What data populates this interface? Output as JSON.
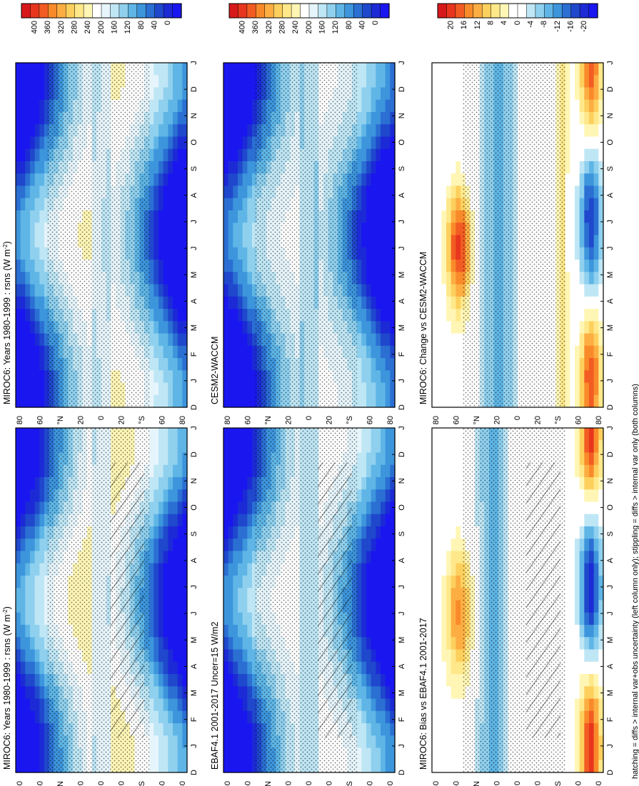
{
  "footnote": "hatching = diffs > internal var+obs uncertainty (left column only); stippling = diffs > internal var only (both columns)",
  "colors": {
    "abs_scale": [
      "#d7191c",
      "#e8361e",
      "#f25c22",
      "#f98a2a",
      "#fcae42",
      "#fdd05e",
      "#fee88a",
      "#fff6b5",
      "#ffffff",
      "#e6f5fb",
      "#bfe6f5",
      "#8fd0ee",
      "#5fb6e6",
      "#3d95dc",
      "#2b6fd3",
      "#1f48cc",
      "#1c2ad6",
      "#1a16f0"
    ],
    "diff_scale": [
      "#d7191c",
      "#e8361e",
      "#f25c22",
      "#f98a2a",
      "#fcae42",
      "#fdd05e",
      "#fee88a",
      "#fff6b5",
      "#ffffff",
      "#ffffff",
      "#bfe6f5",
      "#8fd0ee",
      "#5fb6e6",
      "#3d95dc",
      "#2b6fd3",
      "#1f48cc",
      "#1c2ad6",
      "#1a16f0"
    ]
  },
  "chart_data": [
    {
      "type": "heatmap",
      "title": "MIROC6: Years 1980-1999 : rsns (W m",
      "title_sup": "-2",
      "title_end": ")",
      "x": [
        "D",
        "J",
        "F",
        "M",
        "A",
        "M",
        "J",
        "J",
        "A",
        "S",
        "O",
        "N",
        "D",
        "J"
      ],
      "y": [
        "80",
        "60",
        "°N",
        "20",
        "0",
        "20",
        "°S",
        "60",
        "80"
      ],
      "colorbar": [
        "400",
        "360",
        "320",
        "280",
        "240",
        "200",
        "160",
        "120",
        "80",
        "40",
        "0"
      ],
      "scale": "abs",
      "hatching": true
    },
    {
      "type": "heatmap",
      "title": "MIROC6: Years 1980-1999 : rsns (W m",
      "title_sup": "-2",
      "title_end": ")",
      "x": [
        "D",
        "J",
        "F",
        "M",
        "A",
        "M",
        "J",
        "J",
        "A",
        "S",
        "O",
        "N",
        "D",
        "J"
      ],
      "y": [
        "80",
        "60",
        "°N",
        "20",
        "0",
        "20",
        "°S",
        "60",
        "80"
      ],
      "colorbar": [
        "400",
        "360",
        "320",
        "280",
        "240",
        "200",
        "160",
        "120",
        "80",
        "40",
        "0"
      ],
      "scale": "abs",
      "hatching": false
    },
    {
      "type": "heatmap",
      "title": "EBAF4.1 2001-2017 Uncer=15 W/m2",
      "title_sup": "",
      "title_end": "",
      "x": [
        "D",
        "J",
        "F",
        "M",
        "A",
        "M",
        "J",
        "J",
        "A",
        "S",
        "O",
        "N",
        "D",
        "J"
      ],
      "y": [
        "80",
        "60",
        "°N",
        "20",
        "0",
        "20",
        "°S",
        "60",
        "80"
      ],
      "colorbar": [
        "400",
        "360",
        "320",
        "280",
        "240",
        "200",
        "160",
        "120",
        "80",
        "40",
        "0"
      ],
      "scale": "abs",
      "hatching": true
    },
    {
      "type": "heatmap",
      "title": "CESM2-WACCM",
      "title_sup": "",
      "title_end": "",
      "x": [
        "D",
        "J",
        "F",
        "M",
        "A",
        "M",
        "J",
        "J",
        "A",
        "S",
        "O",
        "N",
        "D",
        "J"
      ],
      "y": [
        "80",
        "60",
        "°N",
        "20",
        "0",
        "20",
        "°S",
        "60",
        "80"
      ],
      "colorbar": [
        "400",
        "360",
        "320",
        "280",
        "240",
        "200",
        "160",
        "120",
        "80",
        "40",
        "0"
      ],
      "scale": "abs",
      "hatching": false
    },
    {
      "type": "heatmap",
      "title": "MIROC6: Bias vs EBAF4.1 2001-2017",
      "title_sup": "",
      "title_end": "",
      "x": [
        "D",
        "J",
        "F",
        "M",
        "A",
        "M",
        "J",
        "J",
        "A",
        "S",
        "O",
        "N",
        "D",
        "J"
      ],
      "y": [
        "80",
        "60",
        "°N",
        "20",
        "0",
        "20",
        "°S",
        "60",
        "80"
      ],
      "colorbar": [
        "20",
        "16",
        "12",
        "8",
        "4",
        "0",
        "-4",
        "-8",
        "-12",
        "-16",
        "-20"
      ],
      "scale": "diff",
      "hatching": true
    },
    {
      "type": "heatmap",
      "title": "MIROC6: Change vs CESM2-WACCM",
      "title_sup": "",
      "title_end": "",
      "x": [
        "D",
        "J",
        "F",
        "M",
        "A",
        "M",
        "J",
        "J",
        "A",
        "S",
        "O",
        "N",
        "D",
        "J"
      ],
      "y": [
        "80",
        "60",
        "°N",
        "20",
        "0",
        "20",
        "°S",
        "60",
        "80"
      ],
      "colorbar": [
        "20",
        "16",
        "12",
        "8",
        "4",
        "0",
        "-4",
        "-8",
        "-12",
        "-16",
        "-20"
      ],
      "scale": "diff",
      "hatching": false
    }
  ]
}
